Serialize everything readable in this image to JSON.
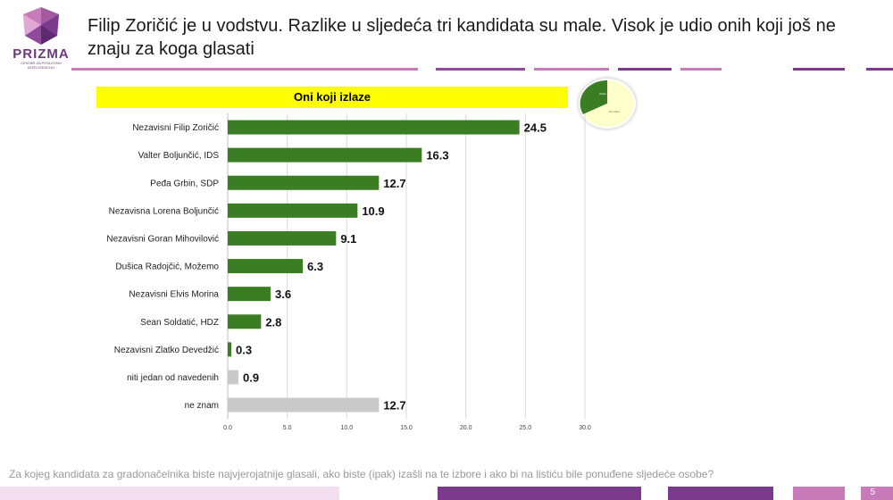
{
  "header": {
    "title": "Filip Zoričić je u vodstvu. Razlike u sljedeća tri kandidata su male. Visok je udio onih koji još ne znaju za koga glasati",
    "logo_name": "PRIZMA",
    "logo_sub": "CENTAR ZA POSLOVNU INTELIGENCIJU"
  },
  "footer": {
    "question": "Za kojeg kandidata za gradonačelnika  biste najvjerojatnije glasali, ako biste (ipak) izašli na te izbore i ako bi na listiću bile ponuđene sljedeće osobe?",
    "page_number": "5"
  },
  "colors": {
    "bar_candidate": "#3a7d22",
    "bar_other": "#c9c9c9",
    "title_bg": "#ffff00",
    "accent_purple": "#7a3b8c",
    "accent_pink": "#c77bb9"
  },
  "chart_data": {
    "type": "bar",
    "orientation": "horizontal",
    "title": "Oni koji izlaze",
    "categories": [
      "Nezavisni Filip Zoričić",
      "Valter Boljunčić, IDS",
      "Peđa Grbin, SDP",
      "Nezavisna Lorena Boljunčić",
      "Nezavisni Goran Mihovilović",
      "Dušica Radojčić, Možemo",
      "Nezavisni Elvis Morina",
      "Sean Soldatić, HDZ",
      "Nezavisni Zlatko Devedžić",
      "niti jedan od navedenih",
      "ne znam"
    ],
    "values": [
      24.5,
      16.3,
      12.7,
      10.9,
      9.1,
      6.3,
      3.6,
      2.8,
      0.3,
      0.9,
      12.7
    ],
    "value_labels": [
      "24.5",
      "16.3",
      "12.7",
      "10.9",
      "9.1",
      "6.3",
      "3.6",
      "2.8",
      "0.3",
      "0.9",
      "12.7"
    ],
    "bar_group": [
      "candidate",
      "candidate",
      "candidate",
      "candidate",
      "candidate",
      "candidate",
      "candidate",
      "candidate",
      "candidate",
      "other",
      "other"
    ],
    "xlim": [
      0,
      30
    ],
    "xticks": [
      0,
      5,
      10,
      15,
      20,
      25,
      30
    ],
    "xtick_labels": [
      "0.0",
      "5.0",
      "10.0",
      "15.0",
      "20.0",
      "25.0",
      "30.0"
    ],
    "grid": true
  },
  "inset_pie": {
    "type": "pie",
    "slice_labels": [
      "Izlaze",
      "Ne izlaze"
    ],
    "colors": [
      "#3a7d22",
      "#ffffcc"
    ]
  }
}
